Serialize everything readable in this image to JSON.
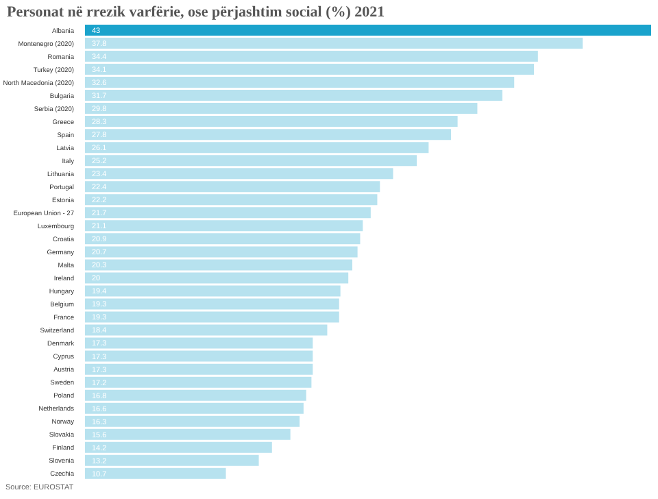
{
  "chart_data": {
    "type": "bar",
    "orientation": "horizontal",
    "title": "Personat në rrezik varfërie, ose përjashtim social (%) 2021",
    "categories": [
      "Albania",
      "Montenegro (2020)",
      "Romania",
      "Turkey (2020)",
      "North Macedonia (2020)",
      "Bulgaria",
      "Serbia (2020)",
      "Greece",
      "Spain",
      "Latvia",
      "Italy",
      "Lithuania",
      "Portugal",
      "Estonia",
      "European Union - 27",
      "Luxembourg",
      "Croatia",
      "Germany",
      "Malta",
      "Ireland",
      "Hungary",
      "Belgium",
      "France",
      "Switzerland",
      "Denmark",
      "Cyprus",
      "Austria",
      "Sweden",
      "Poland",
      "Netherlands",
      "Norway",
      "Slovakia",
      "Finland",
      "Slovenia",
      "Czechia"
    ],
    "values": [
      43,
      37.8,
      34.4,
      34.1,
      32.6,
      31.7,
      29.8,
      28.3,
      27.8,
      26.1,
      25.2,
      23.4,
      22.4,
      22.2,
      21.7,
      21.1,
      20.9,
      20.7,
      20.3,
      20,
      19.4,
      19.3,
      19.3,
      18.4,
      17.3,
      17.3,
      17.3,
      17.2,
      16.8,
      16.6,
      16.3,
      15.6,
      14.2,
      13.2,
      10.7
    ],
    "colors": [
      "#1aa3cc",
      "#b7e2ef",
      "#b7e2ef",
      "#b7e2ef",
      "#b7e2ef",
      "#b7e2ef",
      "#b7e2ef",
      "#b7e2ef",
      "#b7e2ef",
      "#b7e2ef",
      "#b7e2ef",
      "#b7e2ef",
      "#b7e2ef",
      "#b7e2ef",
      "#b7e2ef",
      "#b7e2ef",
      "#b7e2ef",
      "#b7e2ef",
      "#b7e2ef",
      "#b7e2ef",
      "#b7e2ef",
      "#b7e2ef",
      "#b7e2ef",
      "#b7e2ef",
      "#b7e2ef",
      "#b7e2ef",
      "#b7e2ef",
      "#b7e2ef",
      "#b7e2ef",
      "#b7e2ef",
      "#b7e2ef",
      "#b7e2ef",
      "#b7e2ef",
      "#b7e2ef",
      "#b7e2ef"
    ],
    "data_labels": true,
    "tick_labels": "y",
    "grid": false,
    "legend": false,
    "annotations": [
      "Source: EUROSTAT"
    ]
  }
}
